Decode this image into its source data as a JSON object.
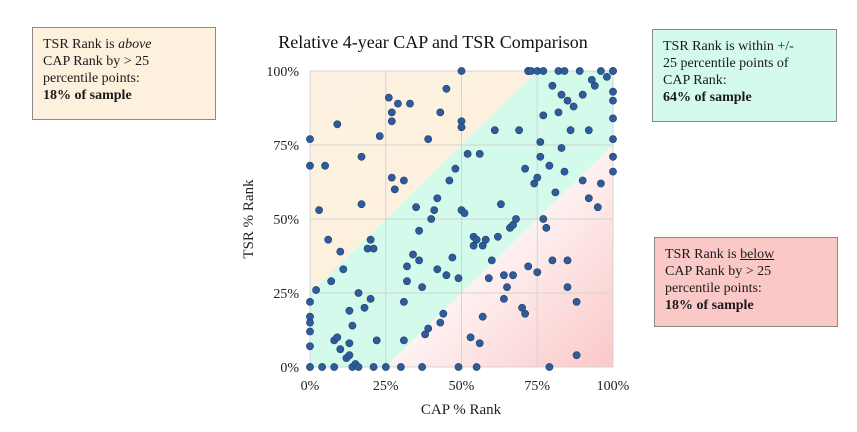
{
  "chart_data": {
    "type": "scatter",
    "title": "Relative 4-year CAP and TSR Comparison",
    "xlabel": "CAP % Rank",
    "ylabel": "TSR % Rank",
    "xlim": [
      0,
      100
    ],
    "ylim": [
      0,
      100
    ],
    "x_ticks": [
      "0%",
      "25%",
      "50%",
      "75%",
      "100%"
    ],
    "y_ticks": [
      "0%",
      "25%",
      "50%",
      "75%",
      "100%"
    ],
    "grid": true,
    "bands": {
      "above_color": "#fdf0dc",
      "within_color": "#d3faea",
      "below_color": "#fbc8c8",
      "threshold": 25
    },
    "point_color": "#2e5c9a",
    "points": [
      [
        0,
        77
      ],
      [
        0,
        68
      ],
      [
        0,
        22
      ],
      [
        0,
        17
      ],
      [
        0,
        15
      ],
      [
        0,
        12
      ],
      [
        0,
        7
      ],
      [
        0,
        0
      ],
      [
        2,
        26
      ],
      [
        3,
        53
      ],
      [
        4,
        0
      ],
      [
        5,
        68
      ],
      [
        6,
        43
      ],
      [
        7,
        29
      ],
      [
        8,
        9
      ],
      [
        8,
        0
      ],
      [
        9,
        82
      ],
      [
        9,
        10
      ],
      [
        10,
        6
      ],
      [
        10,
        39
      ],
      [
        11,
        33
      ],
      [
        12,
        3
      ],
      [
        13,
        19
      ],
      [
        13,
        8
      ],
      [
        13,
        4
      ],
      [
        14,
        0
      ],
      [
        14,
        14
      ],
      [
        15,
        1
      ],
      [
        16,
        0
      ],
      [
        16,
        25
      ],
      [
        17,
        55
      ],
      [
        17,
        71
      ],
      [
        18,
        20
      ],
      [
        19,
        40
      ],
      [
        20,
        23
      ],
      [
        20,
        43
      ],
      [
        21,
        40
      ],
      [
        21,
        0
      ],
      [
        22,
        9
      ],
      [
        23,
        78
      ],
      [
        25,
        0
      ],
      [
        26,
        91
      ],
      [
        27,
        86
      ],
      [
        27,
        83
      ],
      [
        27,
        64
      ],
      [
        28,
        60
      ],
      [
        29,
        89
      ],
      [
        30,
        0
      ],
      [
        31,
        22
      ],
      [
        31,
        63
      ],
      [
        31,
        9
      ],
      [
        32,
        34
      ],
      [
        32,
        29
      ],
      [
        33,
        89
      ],
      [
        34,
        38
      ],
      [
        35,
        54
      ],
      [
        36,
        46
      ],
      [
        36,
        36
      ],
      [
        37,
        27
      ],
      [
        37,
        0
      ],
      [
        38,
        11
      ],
      [
        39,
        13
      ],
      [
        39,
        77
      ],
      [
        40,
        50
      ],
      [
        41,
        53
      ],
      [
        42,
        57
      ],
      [
        42,
        33
      ],
      [
        43,
        86
      ],
      [
        43,
        15
      ],
      [
        44,
        18
      ],
      [
        45,
        94
      ],
      [
        45,
        31
      ],
      [
        46,
        63
      ],
      [
        47,
        37
      ],
      [
        48,
        67
      ],
      [
        49,
        30
      ],
      [
        49,
        0
      ],
      [
        50,
        100
      ],
      [
        50,
        83
      ],
      [
        50,
        81
      ],
      [
        50,
        53
      ],
      [
        51,
        52
      ],
      [
        52,
        72
      ],
      [
        53,
        10
      ],
      [
        54,
        44
      ],
      [
        54,
        41
      ],
      [
        55,
        0
      ],
      [
        55,
        43
      ],
      [
        56,
        72
      ],
      [
        56,
        8
      ],
      [
        57,
        17
      ],
      [
        57,
        41
      ],
      [
        58,
        43
      ],
      [
        59,
        30
      ],
      [
        60,
        36
      ],
      [
        61,
        80
      ],
      [
        62,
        44
      ],
      [
        63,
        55
      ],
      [
        64,
        23
      ],
      [
        64,
        31
      ],
      [
        65,
        27
      ],
      [
        66,
        47
      ],
      [
        67,
        48
      ],
      [
        67,
        31
      ],
      [
        68,
        50
      ],
      [
        69,
        80
      ],
      [
        70,
        20
      ],
      [
        71,
        67
      ],
      [
        71,
        18
      ],
      [
        72,
        34
      ],
      [
        72,
        100
      ],
      [
        72,
        100
      ],
      [
        73,
        100
      ],
      [
        74,
        62
      ],
      [
        75,
        32
      ],
      [
        75,
        64
      ],
      [
        75,
        100
      ],
      [
        76,
        76
      ],
      [
        76,
        71
      ],
      [
        77,
        50
      ],
      [
        77,
        85
      ],
      [
        77,
        100
      ],
      [
        78,
        47
      ],
      [
        79,
        68
      ],
      [
        79,
        0
      ],
      [
        80,
        36
      ],
      [
        80,
        95
      ],
      [
        81,
        59
      ],
      [
        82,
        100
      ],
      [
        82,
        86
      ],
      [
        83,
        74
      ],
      [
        83,
        92
      ],
      [
        84,
        100
      ],
      [
        84,
        66
      ],
      [
        85,
        90
      ],
      [
        85,
        36
      ],
      [
        85,
        27
      ],
      [
        86,
        80
      ],
      [
        87,
        88
      ],
      [
        88,
        22
      ],
      [
        88,
        4
      ],
      [
        89,
        100
      ],
      [
        90,
        63
      ],
      [
        90,
        92
      ],
      [
        92,
        57
      ],
      [
        92,
        80
      ],
      [
        93,
        97
      ],
      [
        94,
        95
      ],
      [
        95,
        54
      ],
      [
        96,
        100
      ],
      [
        96,
        62
      ],
      [
        98,
        98
      ],
      [
        100,
        100
      ],
      [
        100,
        90
      ],
      [
        100,
        84
      ],
      [
        100,
        77
      ],
      [
        100,
        71
      ],
      [
        100,
        66
      ],
      [
        100,
        93
      ],
      [
        100,
        100
      ]
    ]
  },
  "callouts": {
    "above": {
      "l1_pre": "TSR Rank is ",
      "l1_em": "above",
      "l2": "CAP Rank by > 25",
      "l3": "percentile points:",
      "l4": "18% of sample"
    },
    "within": {
      "l1": "TSR Rank is within +/-",
      "l2": "25 percentile points of",
      "l3": "CAP Rank:",
      "l4": "64% of sample"
    },
    "below": {
      "l1_pre": "TSR Rank is ",
      "l1_u": "below",
      "l2": "CAP Rank by > 25",
      "l3": "percentile points:",
      "l4": "18% of sample"
    }
  }
}
